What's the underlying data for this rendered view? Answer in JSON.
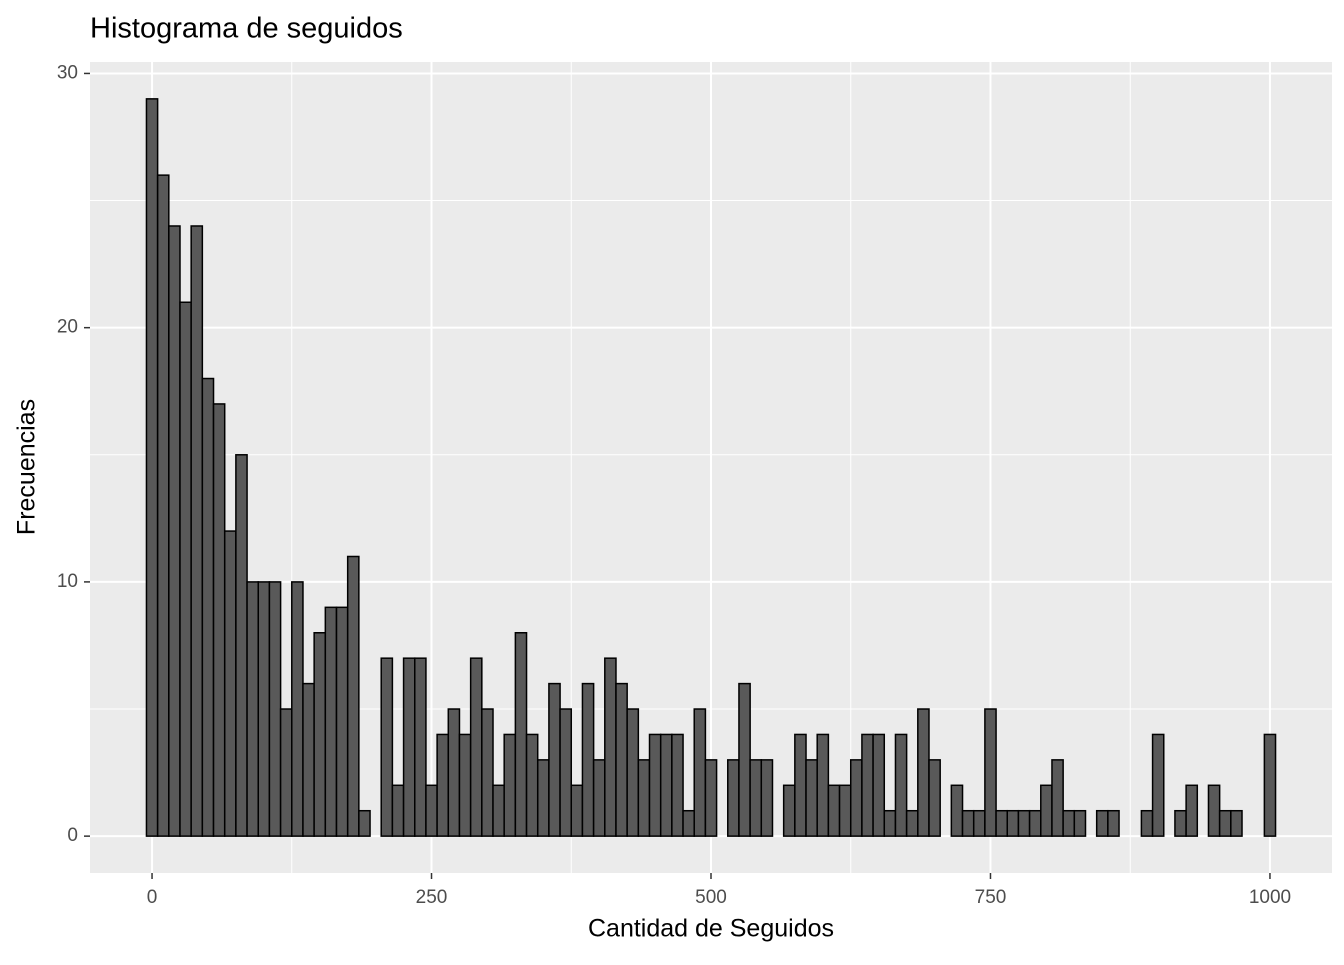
{
  "chart_data": {
    "type": "histogram",
    "title": "Histograma de seguidos",
    "x_label": "Cantidad de Seguidos",
    "y_label": "Frecuencias",
    "bins": [
      -5,
      5,
      15,
      25,
      35,
      45,
      55,
      65,
      75,
      85,
      95,
      105,
      115,
      125,
      135,
      145,
      155,
      165,
      175,
      185,
      195,
      205,
      215,
      225,
      235,
      245,
      255,
      265,
      275,
      285,
      295,
      305,
      315,
      325,
      335,
      345,
      355,
      365,
      375,
      385,
      395,
      405,
      415,
      425,
      435,
      445,
      455,
      465,
      475,
      485,
      495,
      505,
      515,
      525,
      535,
      545,
      555,
      565,
      575,
      585,
      595,
      605,
      615,
      625,
      635,
      645,
      655,
      665,
      675,
      685,
      695,
      705,
      715,
      725,
      735,
      745,
      755,
      765,
      775,
      785,
      795,
      805,
      815,
      825,
      835,
      845,
      855,
      865,
      875,
      885,
      895,
      905,
      915,
      925,
      935,
      945,
      955,
      965,
      975,
      985,
      995,
      1005
    ],
    "counts": [
      29,
      26,
      24,
      21,
      24,
      18,
      17,
      12,
      15,
      10,
      10,
      10,
      5,
      10,
      6,
      8,
      9,
      9,
      11,
      1,
      0,
      7,
      2,
      7,
      7,
      2,
      4,
      5,
      4,
      7,
      5,
      2,
      4,
      8,
      4,
      3,
      6,
      5,
      2,
      6,
      3,
      7,
      6,
      5,
      3,
      4,
      4,
      4,
      1,
      5,
      3,
      0,
      3,
      6,
      3,
      3,
      0,
      2,
      4,
      3,
      4,
      2,
      2,
      3,
      4,
      4,
      1,
      4,
      1,
      5,
      3,
      0,
      2,
      1,
      1,
      5,
      1,
      1,
      1,
      1,
      2,
      3,
      1,
      1,
      0,
      1,
      1,
      0,
      0,
      1,
      4,
      0,
      1,
      2,
      0,
      2,
      1,
      1,
      0,
      0,
      4
    ],
    "color": "#595959",
    "edge_color": "#000000",
    "xlim": [
      -55.5,
      1055.5
    ],
    "ylim": [
      -1.45,
      30.45
    ],
    "xticks": [
      0,
      250,
      500,
      750,
      1000
    ],
    "yticks": [
      0,
      10,
      20,
      30
    ],
    "grid": true
  }
}
